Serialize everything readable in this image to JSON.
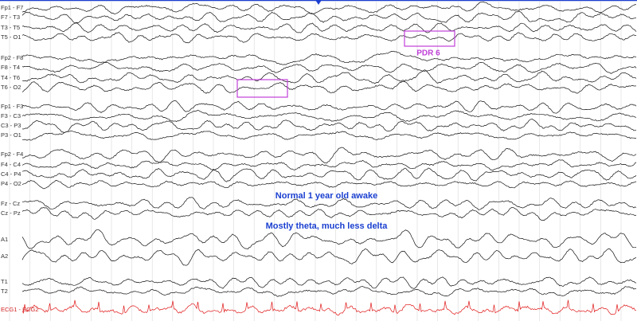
{
  "channels": [
    "Fp1 - F7",
    "F7 - T3",
    "T3 - T5",
    "T5 - O1",
    "Fp2 - F8",
    "F8 - T4",
    "T4 - T6",
    "T6 - O2",
    "Fp1 - F3",
    "F3 - C3",
    "C3 - P3",
    "P3 - O1",
    "Fp2 - F4",
    "F4 - C4",
    "C4 - P4",
    "P4 - O2",
    "Fz - Cz",
    "Cz - Pz",
    "A1",
    "A2",
    "T1",
    "T2",
    "ECG1 - ECG2"
  ],
  "annotations": {
    "pdr": "PDR 6",
    "note1": "Normal 1 year old awake",
    "note2": "Mostly theta, much less delta"
  }
}
